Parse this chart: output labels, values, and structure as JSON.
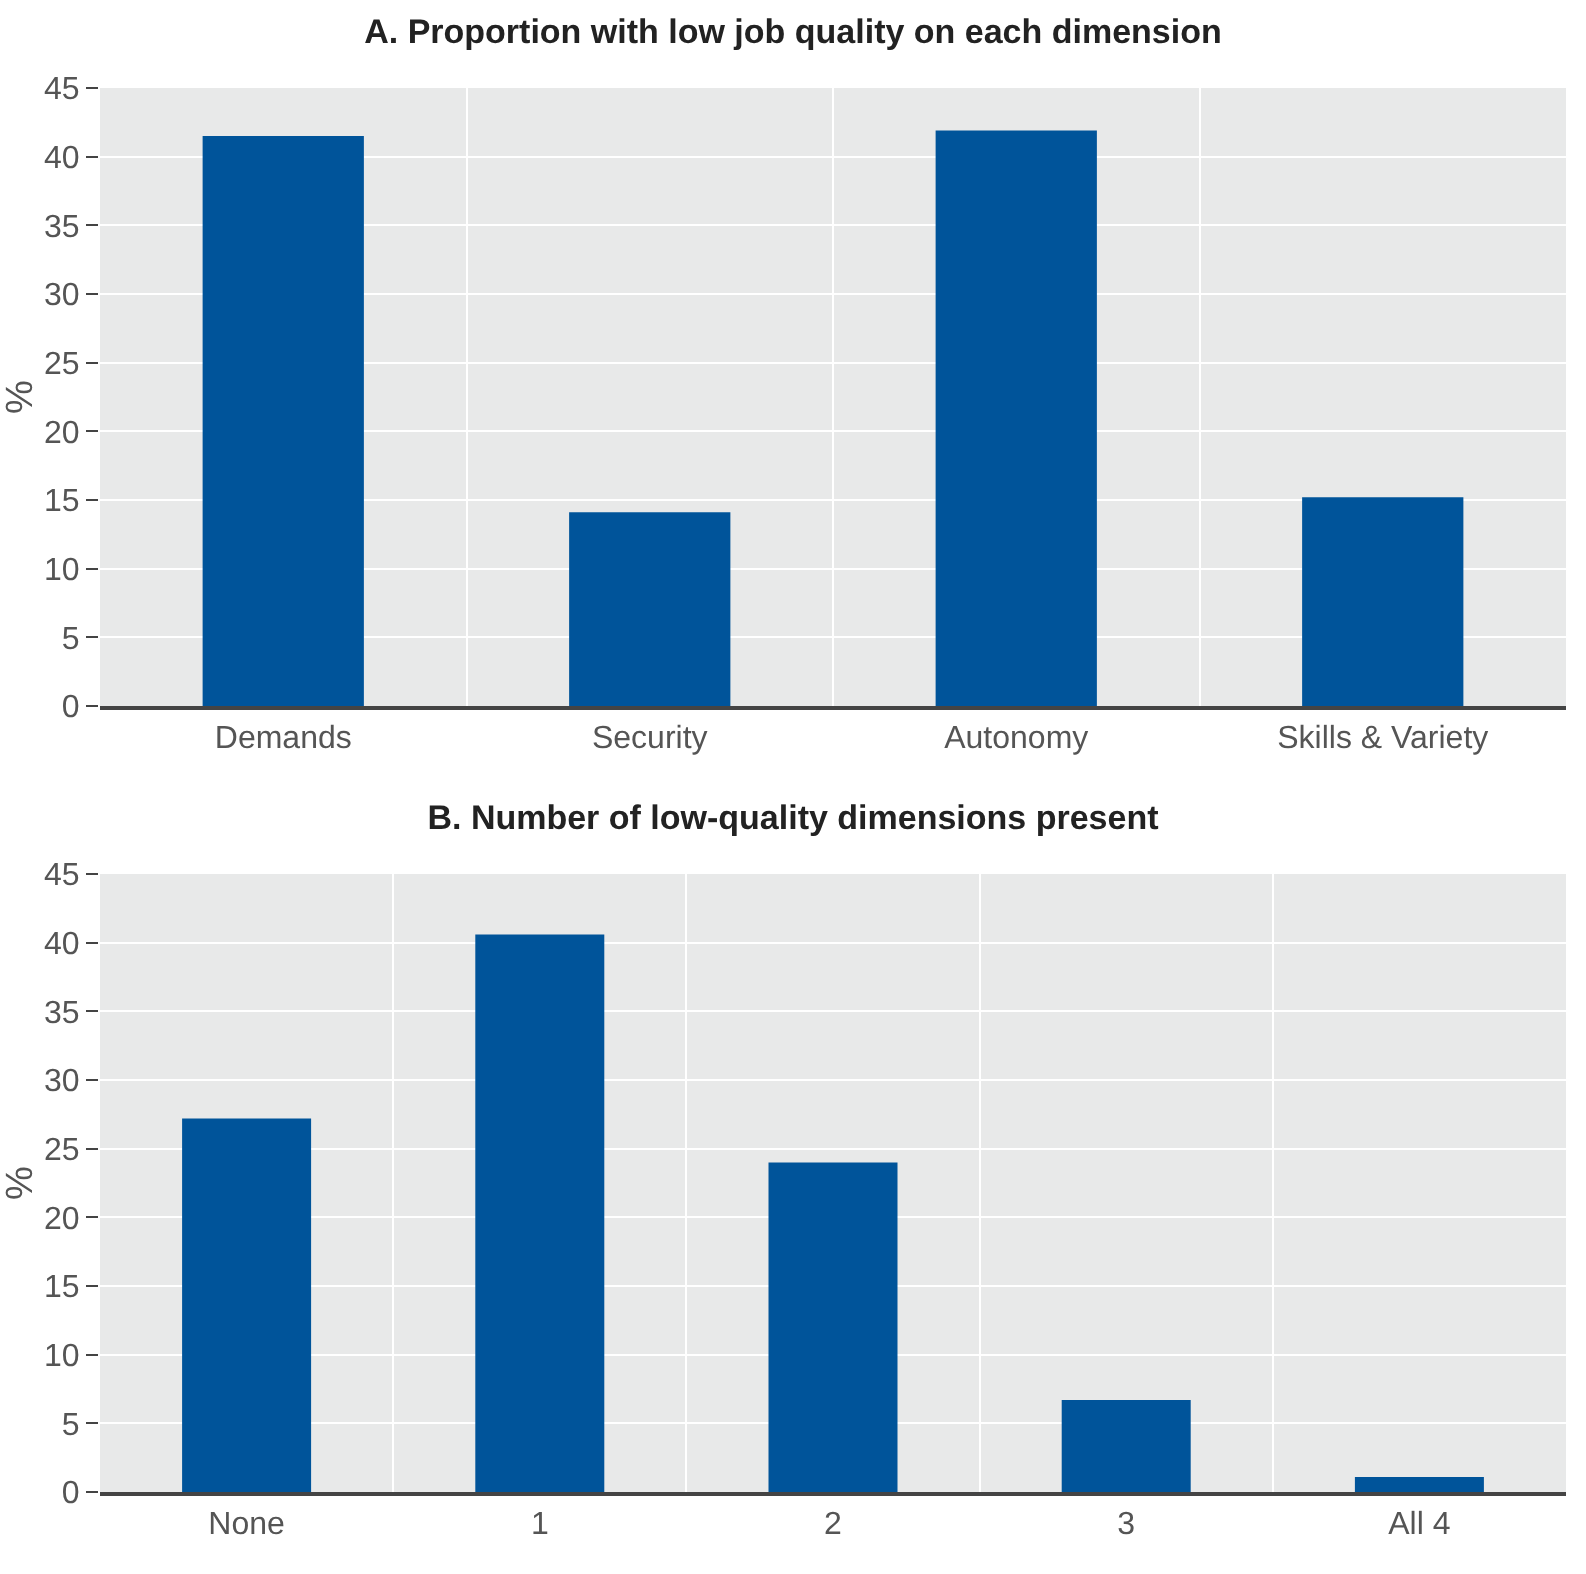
{
  "chart_data": [
    {
      "type": "bar",
      "title": "A. Proportion with low job quality on each dimension",
      "ylabel": "%",
      "categories": [
        "Demands",
        "Security",
        "Autonomy",
        "Skills & Variety"
      ],
      "values": [
        41.5,
        14.1,
        41.9,
        15.2
      ],
      "color": "#00549a",
      "ylim": [
        0,
        45
      ],
      "yticks": [
        0,
        5,
        10,
        15,
        20,
        25,
        30,
        35,
        40,
        45
      ],
      "grid": true
    },
    {
      "type": "bar",
      "title": "B. Number of low-quality dimensions present",
      "ylabel": "%",
      "categories": [
        "None",
        "1",
        "2",
        "3",
        "All 4"
      ],
      "values": [
        27.2,
        40.6,
        24.0,
        6.7,
        1.1
      ],
      "color": "#00549a",
      "ylim": [
        0,
        45
      ],
      "yticks": [
        0,
        5,
        10,
        15,
        20,
        25,
        30,
        35,
        40,
        45
      ],
      "grid": true
    }
  ]
}
